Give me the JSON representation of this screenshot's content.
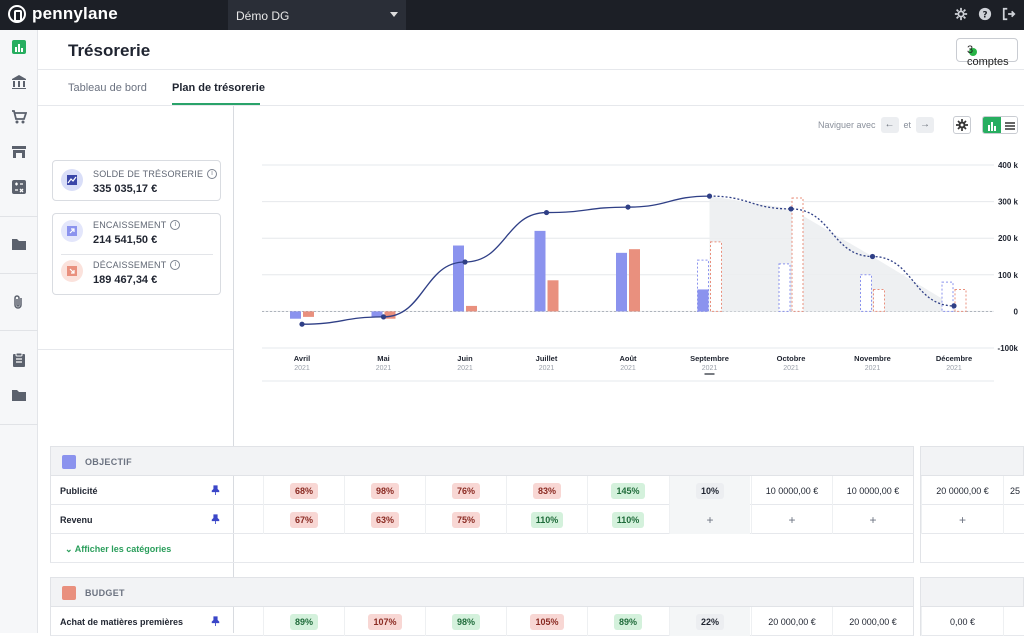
{
  "app": {
    "brand": "pennylane",
    "company": "Démo DG"
  },
  "page": {
    "title": "Trésorerie",
    "accounts_button": "3 comptes"
  },
  "tabs": [
    {
      "label": "Tableau de bord",
      "active": false
    },
    {
      "label": "Plan de trésorerie",
      "active": true
    }
  ],
  "kpis": {
    "balance": {
      "label": "SOLDE DE TRÉSORERIE",
      "value": "335 035,17 €"
    },
    "income": {
      "label": "ENCAISSEMENT",
      "value": "214 541,50 €"
    },
    "expense": {
      "label": "DÉCAISSEMENT",
      "value": "189 467,34 €"
    }
  },
  "nav": {
    "label": "Naviguer avec",
    "and": "et",
    "left_arrow": "←",
    "right_arrow": "→"
  },
  "chart_data": {
    "type": "bar",
    "categories": [
      "Avril",
      "Mai",
      "Juin",
      "Juillet",
      "Août",
      "Septembre",
      "Octobre",
      "Novembre",
      "Décembre"
    ],
    "year_labels": [
      "2021",
      "2021",
      "2021",
      "2021",
      "2021",
      "2021",
      "2021",
      "2021",
      "2021"
    ],
    "y_ticks": [
      "400 k",
      "300 k",
      "200 k",
      "100 k",
      "0",
      "-100k"
    ],
    "ylim": [
      -100000,
      400000
    ],
    "series": [
      {
        "values": [
          -20000,
          -15000,
          180000,
          220000,
          160000,
          60000,
          0,
          0,
          0
        ],
        "forecast": [
          0,
          0,
          0,
          0,
          0,
          140000,
          130000,
          100000,
          80000
        ]
      },
      {
        "values": [
          -15000,
          -20000,
          15000,
          85000,
          170000,
          0,
          0,
          0,
          0
        ],
        "forecast": [
          0,
          0,
          0,
          0,
          0,
          190000,
          310000,
          60000,
          60000
        ]
      },
      {
        "values": [
          -35000,
          -15000,
          135000,
          270000,
          285000,
          315000,
          280000,
          150000,
          15000
        ]
      }
    ],
    "colors": {
      "income": "#8b93ee",
      "expense": "#e9907e",
      "balance": "#2f3f86",
      "forecast_area": "#eceef1"
    }
  },
  "sections": {
    "objectif": {
      "title": "OBJECTIF",
      "rows": [
        {
          "label": "Publicité",
          "cells": [
            {
              "t": "68%",
              "s": "red"
            },
            {
              "t": "98%",
              "s": "red"
            },
            {
              "t": "76%",
              "s": "red"
            },
            {
              "t": "83%",
              "s": "red"
            },
            {
              "t": "145%",
              "s": "green"
            },
            {
              "t": "10%",
              "s": "grey"
            },
            {
              "t": "10 0000,00 €",
              "s": "text"
            },
            {
              "t": "10 0000,00 €",
              "s": "text"
            }
          ],
          "extra": [
            "20 0000,00 €",
            "25"
          ]
        },
        {
          "label": "Revenu",
          "cells": [
            {
              "t": "67%",
              "s": "red"
            },
            {
              "t": "63%",
              "s": "red"
            },
            {
              "t": "75%",
              "s": "red"
            },
            {
              "t": "110%",
              "s": "green"
            },
            {
              "t": "110%",
              "s": "green"
            },
            {
              "t": "+",
              "s": "plus"
            },
            {
              "t": "+",
              "s": "plus"
            },
            {
              "t": "+",
              "s": "plus"
            }
          ],
          "extra": [
            "+",
            ""
          ]
        }
      ],
      "show_categories": "Afficher les catégories"
    },
    "budget": {
      "title": "BUDGET",
      "rows": [
        {
          "label": "Achat de matières premières",
          "cells": [
            {
              "t": "89%",
              "s": "green"
            },
            {
              "t": "107%",
              "s": "red"
            },
            {
              "t": "98%",
              "s": "green"
            },
            {
              "t": "105%",
              "s": "red"
            },
            {
              "t": "89%",
              "s": "green"
            },
            {
              "t": "22%",
              "s": "grey"
            },
            {
              "t": "20 000,00 €",
              "s": "text"
            },
            {
              "t": "20 000,00 €",
              "s": "text"
            }
          ],
          "extra": [
            "0,00 €",
            ""
          ]
        }
      ]
    }
  }
}
